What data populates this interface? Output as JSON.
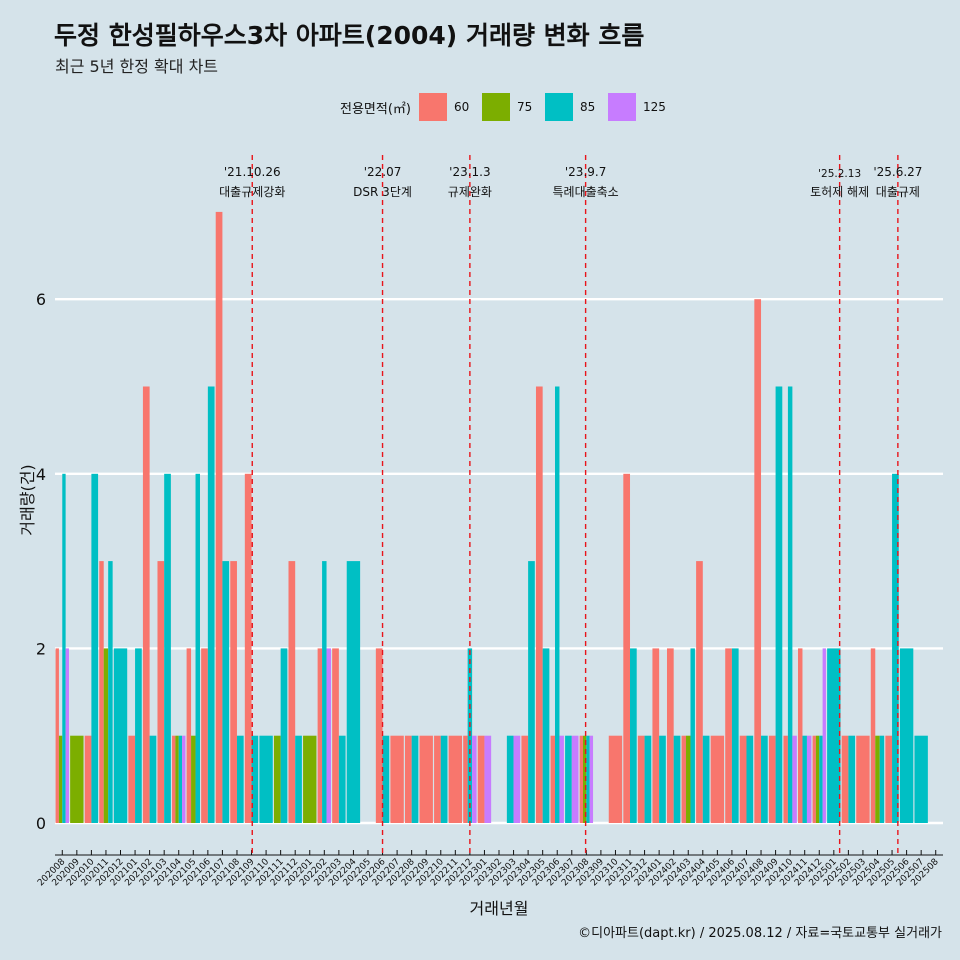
{
  "title": "두정 한성필하우스3차 아파트(2004) 거래량 변화 흐름",
  "subtitle": "최근 5년 한정 확대 차트",
  "caption": "©디아파트(dapt.kr) / 2025.08.12 / 자료=국토교통부 실거래가",
  "legend": {
    "title": "전용면적(㎡)",
    "items": [
      {
        "label": "60",
        "color": "#f8766d"
      },
      {
        "label": "75",
        "color": "#7cae00"
      },
      {
        "label": "85",
        "color": "#00bfc4"
      },
      {
        "label": "125",
        "color": "#c77cff"
      }
    ]
  },
  "chart_data": {
    "type": "bar",
    "title": "두정 한성필하우스3차 아파트(2004) 거래량 변화 흐름",
    "xlabel": "거래년월",
    "ylabel": "거래량(건)",
    "ylim": [
      0,
      7.3
    ],
    "yticks": [
      0,
      2,
      4,
      6
    ],
    "grid": true,
    "categories": [
      "202008",
      "202009",
      "202010",
      "202011",
      "202012",
      "202101",
      "202102",
      "202103",
      "202104",
      "202105",
      "202106",
      "202107",
      "202108",
      "202109",
      "202110",
      "202111",
      "202112",
      "202201",
      "202202",
      "202203",
      "202204",
      "202205",
      "202206",
      "202207",
      "202208",
      "202209",
      "202210",
      "202211",
      "202212",
      "202301",
      "202302",
      "202303",
      "202304",
      "202305",
      "202306",
      "202307",
      "202308",
      "202309",
      "202310",
      "202311",
      "202312",
      "202401",
      "202402",
      "202403",
      "202404",
      "202405",
      "202406",
      "202407",
      "202408",
      "202409",
      "202410",
      "202411",
      "202412",
      "202501",
      "202502",
      "202503",
      "202504",
      "202505",
      "202506",
      "202507",
      "202508"
    ],
    "series": [
      {
        "name": "60",
        "color": "#f8766d",
        "values": [
          2,
          0,
          1,
          3,
          0,
          1,
          5,
          3,
          1,
          2,
          2,
          7,
          3,
          4,
          0,
          0,
          3,
          0,
          2,
          2,
          0,
          0,
          2,
          1,
          1,
          1,
          1,
          1,
          1,
          1,
          0,
          0,
          1,
          5,
          1,
          0,
          1,
          0,
          1,
          4,
          1,
          2,
          2,
          1,
          3,
          1,
          2,
          1,
          6,
          1,
          1,
          2,
          1,
          0,
          1,
          1,
          2,
          1,
          0,
          0,
          0
        ]
      },
      {
        "name": "75",
        "color": "#7cae00",
        "values": [
          1,
          1,
          0,
          2,
          0,
          0,
          0,
          0,
          1,
          1,
          0,
          0,
          0,
          0,
          0,
          1,
          0,
          1,
          0,
          0,
          0,
          0,
          0,
          0,
          0,
          0,
          0,
          0,
          0,
          0,
          0,
          0,
          0,
          0,
          0,
          0,
          1,
          0,
          0,
          0,
          0,
          0,
          0,
          1,
          0,
          0,
          0,
          0,
          0,
          0,
          0,
          0,
          1,
          0,
          0,
          0,
          1,
          0,
          0,
          0,
          0
        ]
      },
      {
        "name": "85",
        "color": "#00bfc4",
        "values": [
          4,
          0,
          4,
          3,
          2,
          2,
          1,
          4,
          1,
          4,
          5,
          3,
          1,
          1,
          1,
          2,
          1,
          0,
          3,
          1,
          3,
          0,
          1,
          0,
          1,
          0,
          1,
          0,
          2,
          0,
          0,
          1,
          3,
          2,
          5,
          1,
          1,
          0,
          0,
          2,
          1,
          1,
          1,
          2,
          1,
          0,
          2,
          1,
          1,
          5,
          5,
          1,
          1,
          2,
          1,
          0,
          1,
          4,
          2,
          1,
          0
        ]
      },
      {
        "name": "125",
        "color": "#c77cff",
        "values": [
          2,
          0,
          0,
          0,
          0,
          0,
          0,
          0,
          1,
          0,
          0,
          0,
          0,
          0,
          0,
          0,
          0,
          0,
          2,
          0,
          0,
          0,
          0,
          0,
          0,
          0,
          0,
          0,
          1,
          1,
          0,
          1,
          0,
          0,
          1,
          1,
          1,
          0,
          0,
          0,
          0,
          0,
          0,
          0,
          0,
          0,
          0,
          0,
          0,
          0,
          1,
          1,
          2,
          0,
          0,
          0,
          0,
          0,
          0,
          0,
          0
        ]
      }
    ],
    "annotations": [
      {
        "date": "'21.10.26",
        "label": "대출규제강화",
        "position": 13.55
      },
      {
        "date": "'22.07",
        "label": "DSR 3단계",
        "position": 22.5
      },
      {
        "date": "'23.1.3",
        "label": "규제완화",
        "position": 28.5
      },
      {
        "date": "'23.9.7",
        "label": "특례대출축소",
        "position": 36.45
      },
      {
        "date": "'25.2.13",
        "label": "토허제 해제",
        "position": 53.9
      },
      {
        "date": "'25.6.27",
        "label": "대출규제",
        "position": 57.9
      }
    ]
  }
}
